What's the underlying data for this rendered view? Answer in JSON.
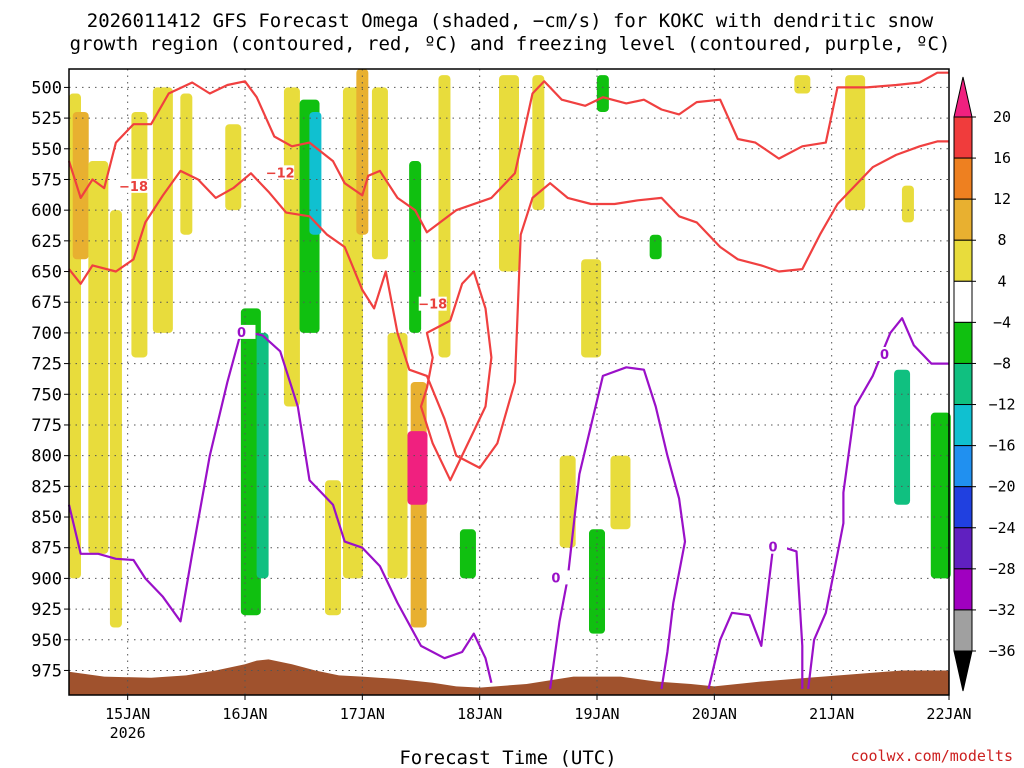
{
  "title_line1": "2026011412 GFS Forecast Omega (shaded, −cm/s) for KOKC with dendritic snow",
  "title_line2": "growth region (contoured, red, ºC) and freezing level (contoured, purple, ºC)",
  "xlabel": "Forecast Time (UTC)",
  "credit": "coolwx.com/modelts",
  "colors": {
    "red_contour": "#f04040",
    "purple_contour": "#9a10c8",
    "ground": "#a0522d"
  },
  "chart_data": {
    "type": "heatmap",
    "x_range": [
      "2026-01-14 12Z",
      "2026-01-22 00Z"
    ],
    "y_axis": {
      "unit": "hPa",
      "inverted": true,
      "ylim": [
        485,
        995
      ],
      "ticks": [
        500,
        525,
        550,
        575,
        600,
        625,
        650,
        675,
        700,
        725,
        750,
        775,
        800,
        825,
        850,
        875,
        900,
        925,
        950,
        975
      ]
    },
    "x_ticks": [
      {
        "label": "15JAN",
        "sub": "2026",
        "day": 15
      },
      {
        "label": "16JAN",
        "sub": "",
        "day": 16
      },
      {
        "label": "17JAN",
        "sub": "",
        "day": 17
      },
      {
        "label": "18JAN",
        "sub": "",
        "day": 18
      },
      {
        "label": "19JAN",
        "sub": "",
        "day": 19
      },
      {
        "label": "20JAN",
        "sub": "",
        "day": 20
      },
      {
        "label": "21JAN",
        "sub": "",
        "day": 21
      },
      {
        "label": "22JAN",
        "sub": "",
        "day": 22
      }
    ],
    "grid": true,
    "colorbar": {
      "labels": [
        "20",
        "16",
        "12",
        "8",
        "4",
        "−4",
        "−8",
        "−12",
        "−16",
        "−20",
        "−24",
        "−28",
        "−32",
        "−36"
      ],
      "colors": [
        "#f0207f",
        "#f03c3c",
        "#ee8020",
        "#e8b030",
        "#e8dc3c",
        "#ffffff",
        "#10c010",
        "#10c080",
        "#10c0d0",
        "#2090f0",
        "#2040e0",
        "#6020c0",
        "#a000c0",
        "#a0a0a0"
      ]
    },
    "shading": [
      {
        "day": 14.55,
        "p_top": 505,
        "p_bot": 900,
        "val": 6
      },
      {
        "day": 14.6,
        "p_top": 520,
        "p_bot": 640,
        "val": 10
      },
      {
        "day": 14.75,
        "p_top": 560,
        "p_bot": 880,
        "val": 5
      },
      {
        "day": 14.9,
        "p_top": 600,
        "p_bot": 940,
        "val": 5
      },
      {
        "day": 15.1,
        "p_top": 520,
        "p_bot": 720,
        "val": 5
      },
      {
        "day": 15.3,
        "p_top": 500,
        "p_bot": 700,
        "val": 5
      },
      {
        "day": 15.5,
        "p_top": 505,
        "p_bot": 620,
        "val": 5
      },
      {
        "day": 15.9,
        "p_top": 530,
        "p_bot": 600,
        "val": 5
      },
      {
        "day": 16.05,
        "p_top": 680,
        "p_bot": 930,
        "val": -7
      },
      {
        "day": 16.15,
        "p_top": 700,
        "p_bot": 900,
        "val": -10
      },
      {
        "day": 16.4,
        "p_top": 500,
        "p_bot": 760,
        "val": 5
      },
      {
        "day": 16.55,
        "p_top": 510,
        "p_bot": 700,
        "val": -7
      },
      {
        "day": 16.6,
        "p_top": 520,
        "p_bot": 620,
        "val": -13
      },
      {
        "day": 16.75,
        "p_top": 820,
        "p_bot": 930,
        "val": 5
      },
      {
        "day": 16.92,
        "p_top": 500,
        "p_bot": 900,
        "val": 6
      },
      {
        "day": 17.0,
        "p_top": 485,
        "p_bot": 620,
        "val": 11
      },
      {
        "day": 17.15,
        "p_top": 500,
        "p_bot": 640,
        "val": 6
      },
      {
        "day": 17.3,
        "p_top": 700,
        "p_bot": 900,
        "val": 6
      },
      {
        "day": 17.45,
        "p_top": 560,
        "p_bot": 700,
        "val": -7
      },
      {
        "day": 17.48,
        "p_top": 740,
        "p_bot": 940,
        "val": 9
      },
      {
        "day": 17.47,
        "p_top": 780,
        "p_bot": 840,
        "val": 22
      },
      {
        "day": 17.7,
        "p_top": 490,
        "p_bot": 720,
        "val": 5
      },
      {
        "day": 17.9,
        "p_top": 860,
        "p_bot": 900,
        "val": -7
      },
      {
        "day": 18.25,
        "p_top": 490,
        "p_bot": 650,
        "val": 5
      },
      {
        "day": 18.5,
        "p_top": 490,
        "p_bot": 600,
        "val": 5
      },
      {
        "day": 18.75,
        "p_top": 800,
        "p_bot": 875,
        "val": 5
      },
      {
        "day": 18.95,
        "p_top": 640,
        "p_bot": 720,
        "val": 5
      },
      {
        "day": 19.05,
        "p_top": 490,
        "p_bot": 520,
        "val": -7
      },
      {
        "day": 19.0,
        "p_top": 860,
        "p_bot": 945,
        "val": -7
      },
      {
        "day": 19.2,
        "p_top": 800,
        "p_bot": 860,
        "val": 5
      },
      {
        "day": 19.5,
        "p_top": 620,
        "p_bot": 640,
        "val": -7
      },
      {
        "day": 20.75,
        "p_top": 490,
        "p_bot": 505,
        "val": 5
      },
      {
        "day": 21.2,
        "p_top": 490,
        "p_bot": 600,
        "val": 5
      },
      {
        "day": 21.65,
        "p_top": 580,
        "p_bot": 610,
        "val": 5
      },
      {
        "day": 21.6,
        "p_top": 730,
        "p_bot": 840,
        "val": -8
      },
      {
        "day": 21.93,
        "p_top": 765,
        "p_bot": 900,
        "val": -7
      }
    ],
    "contours": [
      {
        "name": "-18 (upper)",
        "level": "-18",
        "type": "red",
        "label_at": [
          15.05,
          581
        ],
        "points": [
          [
            14.5,
            560
          ],
          [
            14.6,
            590
          ],
          [
            14.7,
            575
          ],
          [
            14.8,
            582
          ],
          [
            14.9,
            545
          ],
          [
            15.05,
            530
          ],
          [
            15.2,
            530
          ],
          [
            15.35,
            505
          ],
          [
            15.55,
            496
          ],
          [
            15.7,
            505
          ],
          [
            15.85,
            498
          ],
          [
            16.0,
            495
          ],
          [
            16.1,
            508
          ],
          [
            16.25,
            540
          ],
          [
            16.4,
            548
          ],
          [
            16.55,
            545
          ],
          [
            16.75,
            560
          ],
          [
            16.85,
            578
          ],
          [
            17.0,
            588
          ],
          [
            17.05,
            572
          ],
          [
            17.15,
            568
          ],
          [
            17.3,
            590
          ],
          [
            17.45,
            600
          ],
          [
            17.55,
            618
          ],
          [
            17.8,
            600
          ],
          [
            18.1,
            590
          ],
          [
            18.3,
            570
          ],
          [
            18.45,
            505
          ],
          [
            18.55,
            495
          ],
          [
            18.7,
            510
          ],
          [
            18.9,
            515
          ],
          [
            19.05,
            508
          ],
          [
            19.25,
            513
          ],
          [
            19.4,
            510
          ],
          [
            19.55,
            518
          ],
          [
            19.7,
            522
          ],
          [
            19.85,
            512
          ],
          [
            20.05,
            510
          ],
          [
            20.2,
            542
          ],
          [
            20.35,
            545
          ],
          [
            20.55,
            558
          ],
          [
            20.75,
            548
          ],
          [
            20.95,
            545
          ],
          [
            21.05,
            500
          ],
          [
            21.3,
            500
          ],
          [
            21.55,
            498
          ],
          [
            21.75,
            496
          ],
          [
            21.9,
            488
          ],
          [
            22.0,
            488
          ]
        ]
      },
      {
        "name": "-12 (upper)",
        "level": "-12",
        "type": "red",
        "label_at": [
          16.3,
          570
        ],
        "points": [
          [
            14.5,
            648
          ],
          [
            14.6,
            660
          ],
          [
            14.7,
            645
          ],
          [
            14.9,
            650
          ],
          [
            15.05,
            640
          ],
          [
            15.15,
            610
          ],
          [
            15.3,
            588
          ],
          [
            15.45,
            568
          ],
          [
            15.6,
            575
          ],
          [
            15.75,
            590
          ],
          [
            15.9,
            582
          ],
          [
            16.05,
            570
          ],
          [
            16.2,
            585
          ],
          [
            16.35,
            602
          ],
          [
            16.55,
            605
          ],
          [
            16.7,
            620
          ],
          [
            16.85,
            630
          ],
          [
            17.0,
            665
          ],
          [
            17.1,
            680
          ],
          [
            17.2,
            650
          ],
          [
            17.3,
            700
          ],
          [
            17.4,
            730
          ],
          [
            17.55,
            735
          ],
          [
            17.7,
            770
          ],
          [
            17.8,
            800
          ],
          [
            18.0,
            810
          ],
          [
            18.15,
            790
          ],
          [
            18.3,
            740
          ],
          [
            18.35,
            620
          ],
          [
            18.45,
            590
          ],
          [
            18.6,
            578
          ],
          [
            18.75,
            590
          ],
          [
            18.95,
            595
          ],
          [
            19.15,
            595
          ],
          [
            19.35,
            592
          ],
          [
            19.55,
            590
          ],
          [
            19.7,
            605
          ],
          [
            19.85,
            610
          ],
          [
            20.05,
            630
          ],
          [
            20.2,
            640
          ],
          [
            20.4,
            645
          ],
          [
            20.55,
            650
          ],
          [
            20.75,
            648
          ],
          [
            20.9,
            620
          ],
          [
            21.05,
            595
          ],
          [
            21.2,
            580
          ],
          [
            21.35,
            565
          ],
          [
            21.55,
            555
          ],
          [
            21.75,
            548
          ],
          [
            21.9,
            544
          ],
          [
            22.0,
            544
          ]
        ]
      },
      {
        "name": "-18 / -12 (middle loop)",
        "level": "-18 -12",
        "type": "red",
        "label_at": [
          17.6,
          677
        ],
        "points": [
          [
            17.55,
            745
          ],
          [
            17.6,
            720
          ],
          [
            17.55,
            700
          ],
          [
            17.75,
            690
          ],
          [
            17.85,
            660
          ],
          [
            17.95,
            650
          ],
          [
            18.05,
            680
          ],
          [
            18.1,
            720
          ],
          [
            18.05,
            760
          ],
          [
            17.95,
            780
          ],
          [
            17.8,
            810
          ],
          [
            17.75,
            820
          ],
          [
            17.6,
            790
          ],
          [
            17.5,
            760
          ],
          [
            17.55,
            745
          ]
        ]
      },
      {
        "name": "0 (left)",
        "level": "0",
        "type": "purple",
        "label_at": [
          15.97,
          700
        ],
        "points": [
          [
            14.5,
            840
          ],
          [
            14.6,
            880
          ],
          [
            14.75,
            880
          ],
          [
            14.9,
            884
          ],
          [
            15.05,
            885
          ],
          [
            15.15,
            900
          ],
          [
            15.3,
            915
          ],
          [
            15.45,
            935
          ],
          [
            15.55,
            880
          ],
          [
            15.7,
            800
          ],
          [
            15.85,
            740
          ],
          [
            15.95,
            705
          ],
          [
            16.05,
            700
          ],
          [
            16.15,
            702
          ],
          [
            16.3,
            715
          ],
          [
            16.45,
            760
          ],
          [
            16.55,
            820
          ],
          [
            16.65,
            830
          ],
          [
            16.75,
            840
          ],
          [
            16.85,
            870
          ],
          [
            17.0,
            875
          ],
          [
            17.15,
            890
          ],
          [
            17.3,
            920
          ],
          [
            17.5,
            955
          ],
          [
            17.7,
            965
          ],
          [
            17.85,
            960
          ],
          [
            17.95,
            945
          ],
          [
            18.05,
            965
          ],
          [
            18.1,
            985
          ]
        ]
      },
      {
        "name": "0 (middle)",
        "level": "0",
        "type": "purple",
        "label_at": [
          18.65,
          900
        ],
        "points": [
          [
            18.6,
            990
          ],
          [
            18.68,
            935
          ],
          [
            18.75,
            900
          ],
          [
            18.85,
            815
          ],
          [
            19.05,
            735
          ],
          [
            19.25,
            728
          ],
          [
            19.4,
            730
          ],
          [
            19.5,
            760
          ],
          [
            19.6,
            800
          ],
          [
            19.7,
            835
          ],
          [
            19.75,
            870
          ],
          [
            19.65,
            920
          ],
          [
            19.6,
            960
          ],
          [
            19.55,
            990
          ]
        ]
      },
      {
        "name": "0 (right)",
        "level": "0",
        "type": "purple",
        "label_at": [
          20.5,
          875
        ],
        "points": [
          [
            19.95,
            990
          ],
          [
            20.05,
            950
          ],
          [
            20.15,
            928
          ],
          [
            20.3,
            930
          ],
          [
            20.4,
            955
          ],
          [
            20.5,
            875
          ],
          [
            20.6,
            875
          ],
          [
            20.7,
            878
          ],
          [
            20.75,
            955
          ],
          [
            20.75,
            990
          ]
        ]
      },
      {
        "name": "0 (far right)",
        "level": "0",
        "type": "purple",
        "label_at": [
          21.45,
          718
        ],
        "points": [
          [
            20.8,
            990
          ],
          [
            20.85,
            950
          ],
          [
            20.95,
            928
          ],
          [
            21.05,
            880
          ],
          [
            21.1,
            855
          ],
          [
            21.1,
            830
          ],
          [
            21.2,
            760
          ],
          [
            21.35,
            735
          ],
          [
            21.5,
            700
          ],
          [
            21.6,
            688
          ],
          [
            21.7,
            710
          ],
          [
            21.85,
            725
          ],
          [
            22.0,
            725
          ]
        ]
      }
    ],
    "terrain": [
      [
        14.5,
        976
      ],
      [
        14.8,
        980
      ],
      [
        15.2,
        981
      ],
      [
        15.5,
        979
      ],
      [
        15.75,
        975
      ],
      [
        16.0,
        970
      ],
      [
        16.1,
        967
      ],
      [
        16.2,
        966
      ],
      [
        16.4,
        970
      ],
      [
        16.6,
        975
      ],
      [
        16.8,
        979
      ],
      [
        17.0,
        980
      ],
      [
        17.3,
        982
      ],
      [
        17.6,
        985
      ],
      [
        17.8,
        988
      ],
      [
        18.0,
        989
      ],
      [
        18.4,
        986
      ],
      [
        18.8,
        980
      ],
      [
        19.2,
        980
      ],
      [
        19.5,
        984
      ],
      [
        19.8,
        986
      ],
      [
        20.0,
        988
      ],
      [
        20.4,
        984
      ],
      [
        20.8,
        981
      ],
      [
        21.2,
        978
      ],
      [
        21.6,
        975
      ],
      [
        22.0,
        975
      ]
    ],
    "terrain_bottom": 995
  }
}
